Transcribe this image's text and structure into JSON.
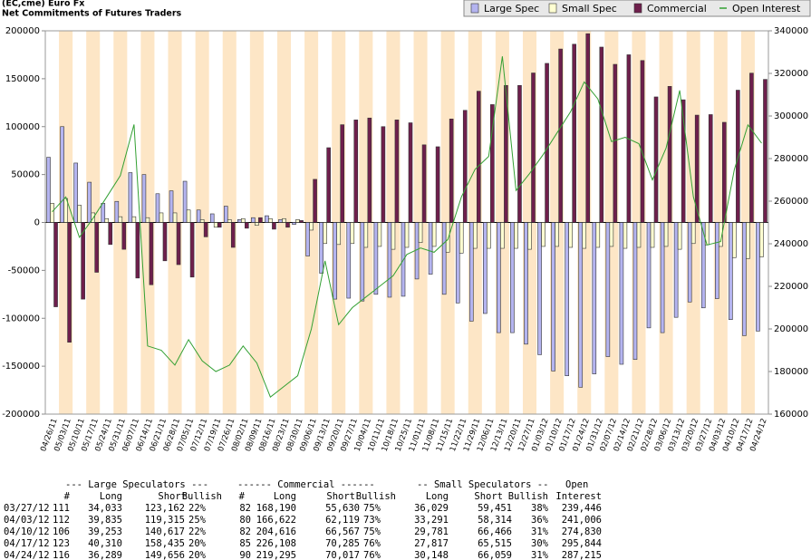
{
  "chart_data": {
    "type": "bar",
    "title": "(EC,cme) Euro Fx",
    "subtitle": "Net Commitments of Futures Traders",
    "categories": [
      "04/26/11",
      "05/03/11",
      "05/10/11",
      "05/17/11",
      "05/24/11",
      "05/31/11",
      "06/07/11",
      "06/14/11",
      "06/21/11",
      "06/28/11",
      "07/05/11",
      "07/12/11",
      "07/19/11",
      "07/26/11",
      "08/02/11",
      "08/09/11",
      "08/16/11",
      "08/23/11",
      "08/30/11",
      "09/06/11",
      "09/13/11",
      "09/20/11",
      "09/27/11",
      "10/04/11",
      "10/11/11",
      "10/18/11",
      "10/25/11",
      "11/01/11",
      "11/08/11",
      "11/15/11",
      "11/22/11",
      "11/29/11",
      "12/06/11",
      "12/13/11",
      "12/20/11",
      "12/27/11",
      "01/03/12",
      "01/10/12",
      "01/17/12",
      "01/24/12",
      "01/31/12",
      "02/07/12",
      "02/14/12",
      "02/21/12",
      "02/28/12",
      "03/06/12",
      "03/13/12",
      "03/20/12",
      "03/27/12",
      "04/03/12",
      "04/10/12",
      "04/17/12",
      "04/24/12"
    ],
    "series": [
      {
        "name": "Large Spec",
        "color": "#b4b4f0",
        "values": [
          68000,
          100000,
          62000,
          42000,
          20000,
          22000,
          52000,
          50000,
          30000,
          33000,
          43000,
          13000,
          9000,
          17000,
          3000,
          5000,
          7000,
          3000,
          -2000,
          -35000,
          -53000,
          -80000,
          -79000,
          -82000,
          -75000,
          -78000,
          -77000,
          -59000,
          -54000,
          -75000,
          -84000,
          -103000,
          -95000,
          -115000,
          -115000,
          -127000,
          -138000,
          -155000,
          -160000,
          -172000,
          -158000,
          -140000,
          -148000,
          -143000,
          -110000,
          -115000,
          -99000,
          -83000,
          -89129,
          -79480,
          -101364,
          -118125,
          -113367
        ]
      },
      {
        "name": "Small Spec",
        "color": "#ffffd2",
        "values": [
          20000,
          25000,
          18000,
          10000,
          4000,
          6000,
          6000,
          5000,
          10000,
          10000,
          13000,
          3000,
          -5000,
          3000,
          4000,
          -3000,
          4000,
          4000,
          3000,
          -8000,
          -22000,
          -23000,
          -22000,
          -26000,
          -25000,
          -28000,
          -26000,
          -21000,
          -25000,
          -31000,
          -32000,
          -27000,
          -27000,
          -27000,
          -27000,
          -28000,
          -25000,
          -25000,
          -26000,
          -27000,
          -26000,
          -25000,
          -27000,
          -26000,
          -26000,
          -25000,
          -28000,
          -22000,
          -23422,
          -25023,
          -36685,
          -37698,
          -35911
        ]
      },
      {
        "name": "Commercial",
        "color": "#6e1f4c",
        "values": [
          -88000,
          -125000,
          -80000,
          -52000,
          -23000,
          -28000,
          -58000,
          -65000,
          -40000,
          -44000,
          -57000,
          -15000,
          -5000,
          -26000,
          -6000,
          5000,
          -7000,
          -5000,
          2000,
          45000,
          78000,
          102000,
          107000,
          109000,
          100000,
          107000,
          104000,
          81000,
          79000,
          108000,
          117000,
          137000,
          123000,
          143000,
          143000,
          156000,
          166000,
          181000,
          186000,
          197000,
          183000,
          165000,
          175000,
          169000,
          131000,
          142000,
          128000,
          112000,
          112560,
          104503,
          138049,
          155823,
          149278
        ]
      },
      {
        "name": "Open Interest",
        "color": "#33a033",
        "type": "line",
        "axis": "y2",
        "values": [
          255000,
          262000,
          243000,
          252000,
          262000,
          272000,
          296000,
          192000,
          190000,
          183000,
          195000,
          185000,
          180000,
          183000,
          192000,
          184000,
          168000,
          173000,
          178000,
          200000,
          232000,
          202000,
          210000,
          215000,
          220000,
          225000,
          235000,
          238000,
          236000,
          242000,
          262000,
          275000,
          281000,
          328000,
          265000,
          273000,
          282000,
          292000,
          302000,
          316000,
          308000,
          288000,
          290000,
          287000,
          270000,
          285000,
          312000,
          262000,
          239446,
          241006,
          274830,
          295844,
          287215
        ]
      }
    ],
    "ylim": [
      -200000,
      200000
    ],
    "yticks": [
      -200000,
      -150000,
      -100000,
      -50000,
      0,
      50000,
      100000,
      150000,
      200000
    ],
    "y2lim": [
      160000,
      340000
    ],
    "y2ticks": [
      160000,
      180000,
      200000,
      220000,
      240000,
      260000,
      280000,
      300000,
      320000,
      340000
    ],
    "legend": "top-right",
    "stripe_color": "#fde6c6"
  },
  "table": {
    "group_headers": [
      "--- Large Speculators ---",
      "------ Commercial ------",
      "-- Small Speculators --",
      "Open"
    ],
    "headers": [
      "#",
      "Long",
      "Short",
      "Bullish",
      "#",
      "Long",
      "Short",
      "Bullish",
      "Long",
      "Short",
      "Bullish",
      "Interest"
    ],
    "rows": [
      [
        "03/27/12",
        "111",
        "34,033",
        "123,162",
        "22%",
        "82",
        "168,190",
        "55,630",
        "75%",
        "36,029",
        "59,451",
        "38%",
        "239,446"
      ],
      [
        "04/03/12",
        "112",
        "39,835",
        "119,315",
        "25%",
        "80",
        "166,622",
        "62,119",
        "73%",
        "33,291",
        "58,314",
        "36%",
        "241,006"
      ],
      [
        "04/10/12",
        "106",
        "39,253",
        "140,617",
        "22%",
        "82",
        "204,616",
        "66,567",
        "75%",
        "29,781",
        "66,466",
        "31%",
        "274,830"
      ],
      [
        "04/17/12",
        "123",
        "40,310",
        "158,435",
        "20%",
        "85",
        "226,108",
        "70,285",
        "76%",
        "27,817",
        "65,515",
        "30%",
        "295,844"
      ],
      [
        "04/24/12",
        "116",
        "36,289",
        "149,656",
        "20%",
        "90",
        "219,295",
        "70,017",
        "76%",
        "30,148",
        "66,059",
        "31%",
        "287,215"
      ]
    ]
  }
}
